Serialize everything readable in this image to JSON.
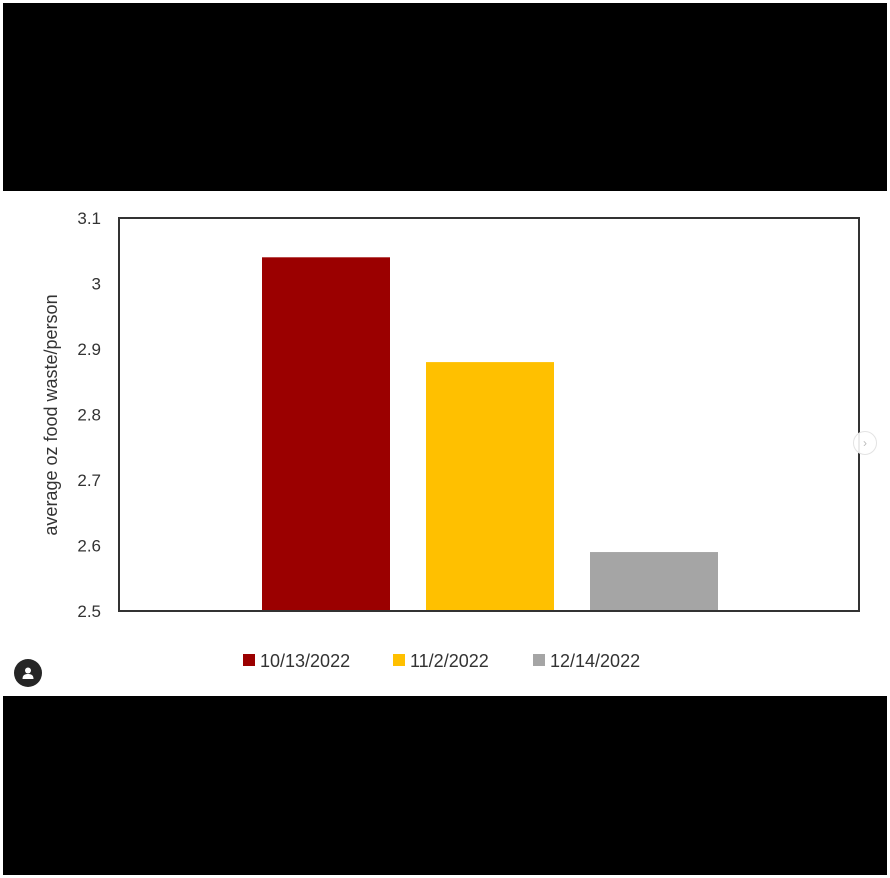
{
  "chart_data": {
    "type": "bar",
    "title": "",
    "xlabel": "",
    "ylabel": "average oz food waste/person",
    "ylim": [
      2.5,
      3.1
    ],
    "yticks": [
      "2.5",
      "2.6",
      "2.7",
      "2.8",
      "2.9",
      "3",
      "3.1"
    ],
    "grid": false,
    "legend_position": "bottom",
    "series": [
      {
        "name": "10/13/2022",
        "value": 3.04,
        "color": "#9b0000"
      },
      {
        "name": "11/2/2022",
        "value": 2.88,
        "color": "#ffc000"
      },
      {
        "name": "12/14/2022",
        "value": 2.59,
        "color": "#a5a5a5"
      }
    ]
  },
  "ui": {
    "next_icon": "chevron-right-icon",
    "user_tag_icon": "person-icon"
  }
}
